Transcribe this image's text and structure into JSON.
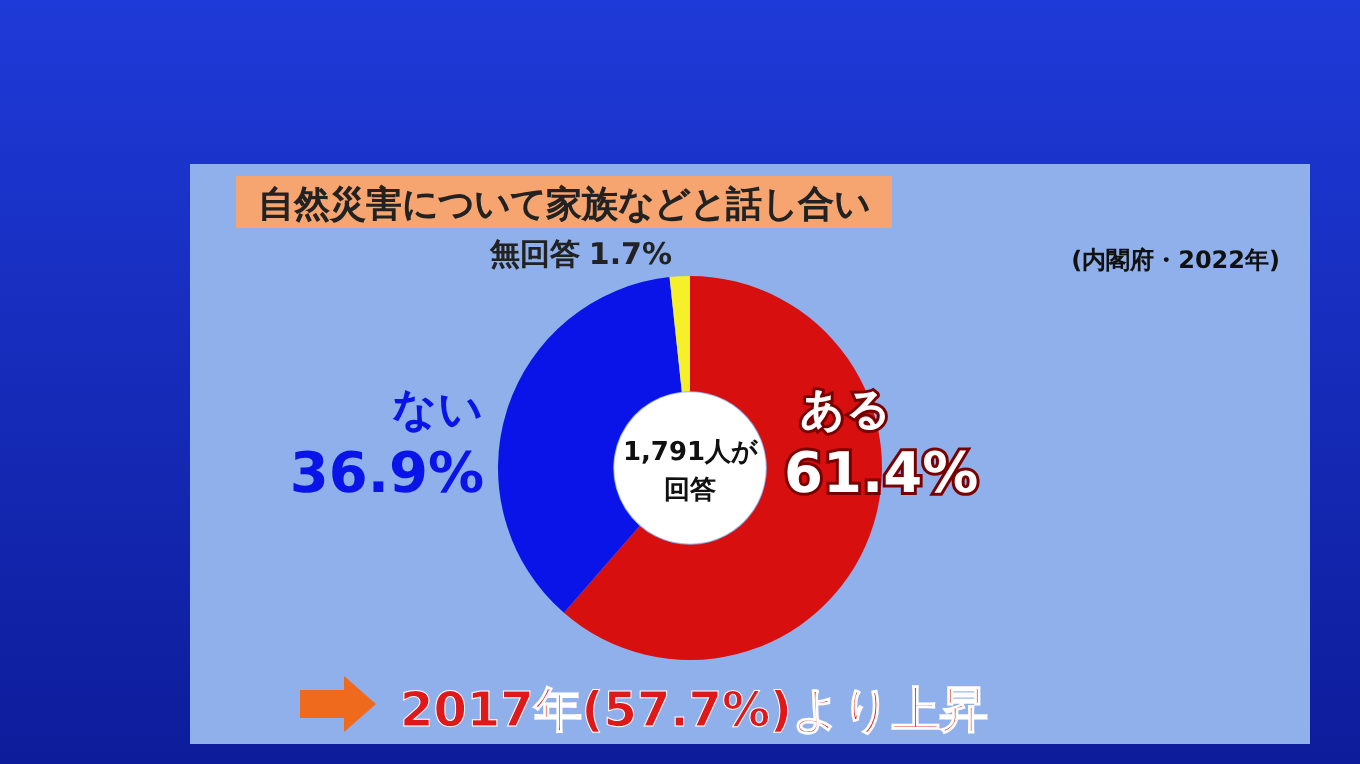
{
  "chart_data": {
    "type": "donut",
    "title": "自然災害について家族などと話し合い",
    "subtitle": "(内閣府・2022年)",
    "categories": [
      "ある",
      "ない",
      "無回答"
    ],
    "values": [
      61.4,
      36.9,
      1.7
    ],
    "value_labels": [
      "61.4%",
      "36.9%",
      "1.7%"
    ],
    "colors": [
      "#d80f0f",
      "#0a14e8",
      "#f5f02a"
    ],
    "annotations": [
      "1,791人が回答",
      "2017年(57.7%)より上昇"
    ]
  }
}
